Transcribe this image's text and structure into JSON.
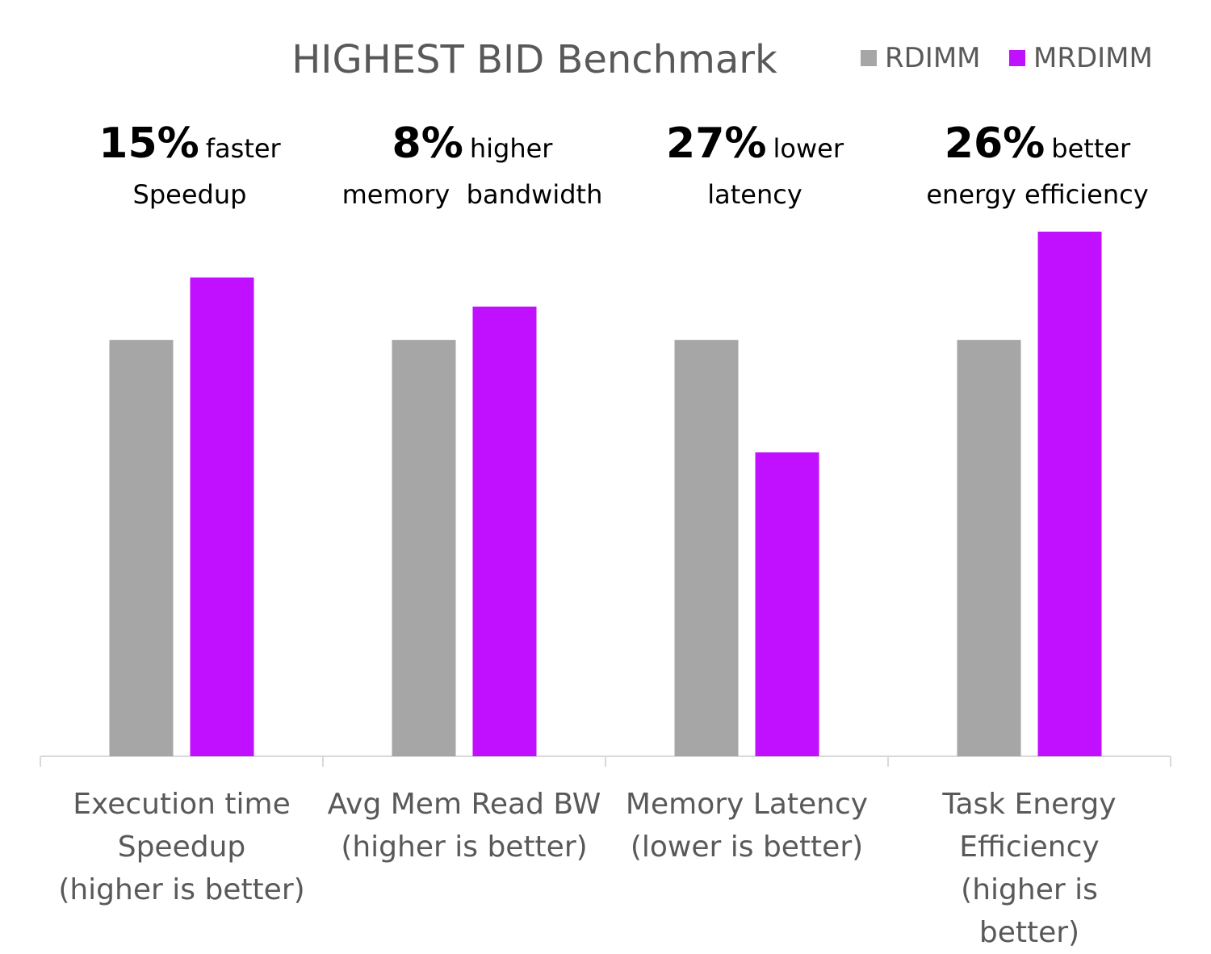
{
  "chart_data": {
    "type": "bar",
    "title": "HIGHEST BID Benchmark",
    "categories": [
      "Execution time\nSpeedup\n(higher is better)",
      "Avg Mem Read BW\n(higher is better)",
      "Memory Latency\n(lower is better)",
      "Task Energy\nEfficiency\n(higher is better)"
    ],
    "series": [
      {
        "name": "RDIMM",
        "color": "#a6a6a6",
        "values": [
          1.0,
          1.0,
          1.0,
          1.0
        ]
      },
      {
        "name": "MRDIMM",
        "color": "#c10fff",
        "values": [
          1.15,
          1.08,
          0.73,
          1.26
        ]
      }
    ],
    "annotations": [
      {
        "highlight": "15%",
        "text": "faster",
        "subtext": "Speedup"
      },
      {
        "highlight": "8%",
        "text": "higher",
        "subtext": "memory  bandwidth"
      },
      {
        "highlight": "27%",
        "text": "lower",
        "subtext": "latency"
      },
      {
        "highlight": "26%",
        "text": "better",
        "subtext": "energy efficiency"
      }
    ],
    "legend": "top-right"
  }
}
